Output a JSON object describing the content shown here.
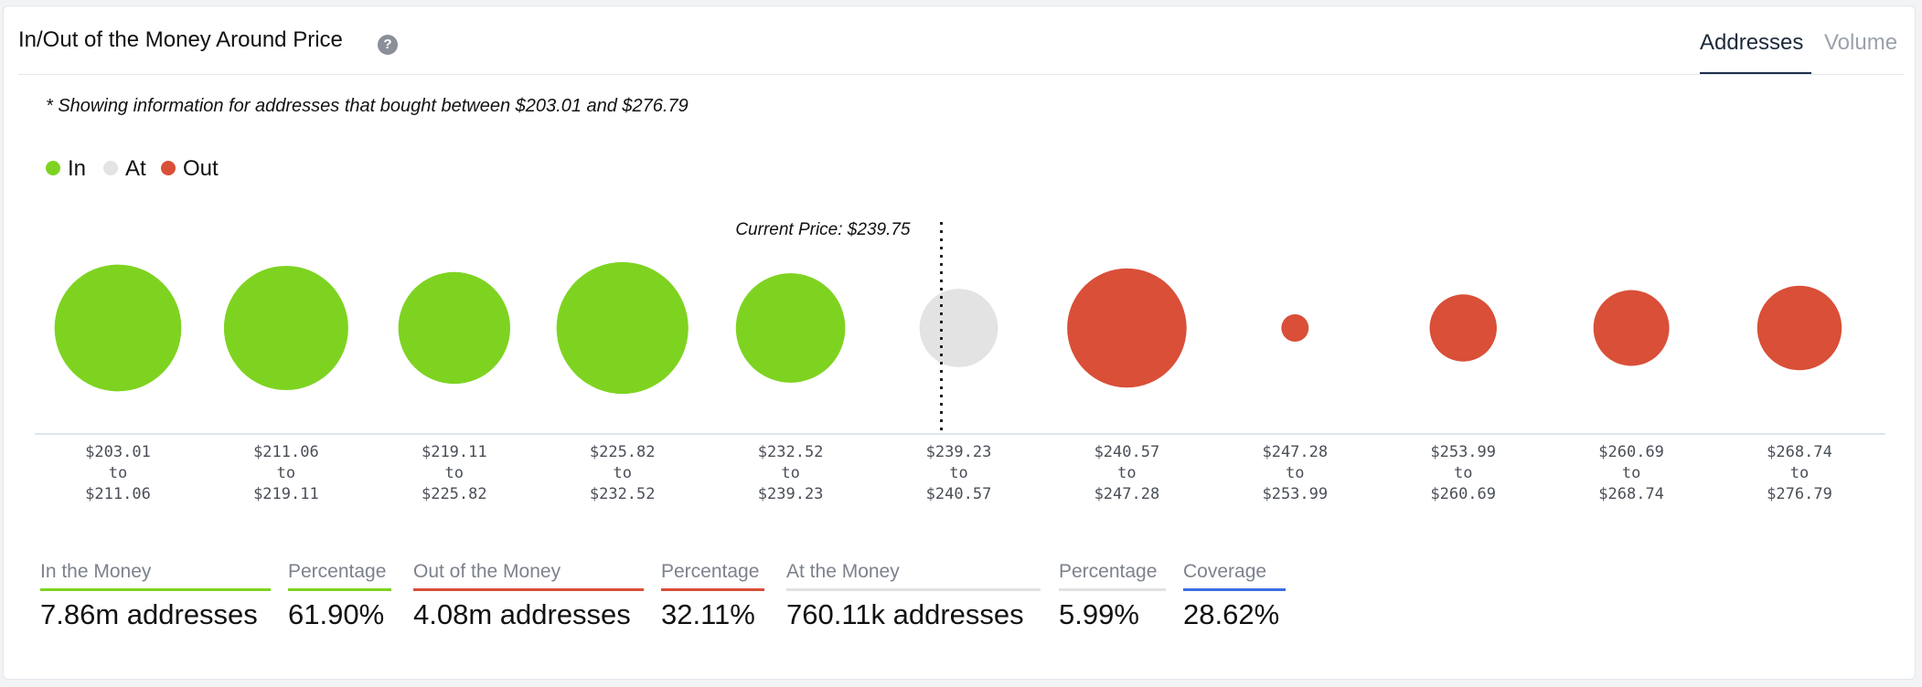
{
  "header": {
    "title": "In/Out of the Money Around Price",
    "help_icon": "question-circle-icon",
    "tabs": [
      {
        "label": "Addresses",
        "active": true
      },
      {
        "label": "Volume",
        "active": false
      }
    ]
  },
  "note": "* Showing information for addresses that bought between $203.01 and $276.79",
  "legend": [
    {
      "label": "In",
      "color": "#7ed321"
    },
    {
      "label": "At",
      "color": "#e3e3e3"
    },
    {
      "label": "Out",
      "color": "#d94f38"
    }
  ],
  "chart_data": {
    "type": "scatter",
    "subtype": "bubble",
    "current_price_label": "Current Price: $239.75",
    "current_price": 239.75,
    "colors": {
      "in": "#7ed321",
      "at": "#e3e3e3",
      "out": "#d94f38"
    },
    "buckets": [
      {
        "from": "$203.01",
        "to_word": "to",
        "to": "$211.06",
        "status": "in",
        "size": 1.02
      },
      {
        "from": "$211.06",
        "to_word": "to",
        "to": "$219.11",
        "status": "in",
        "size": 1.0
      },
      {
        "from": "$219.11",
        "to_word": "to",
        "to": "$225.82",
        "status": "in",
        "size": 0.9
      },
      {
        "from": "$225.82",
        "to_word": "to",
        "to": "$232.52",
        "status": "in",
        "size": 1.06
      },
      {
        "from": "$232.52",
        "to_word": "to",
        "to": "$239.23",
        "status": "in",
        "size": 0.88
      },
      {
        "from": "$239.23",
        "to_word": "to",
        "to": "$240.57",
        "status": "at",
        "size": 0.63
      },
      {
        "from": "$240.57",
        "to_word": "to",
        "to": "$247.28",
        "status": "out",
        "size": 0.96
      },
      {
        "from": "$247.28",
        "to_word": "to",
        "to": "$253.99",
        "status": "out",
        "size": 0.22
      },
      {
        "from": "$253.99",
        "to_word": "to",
        "to": "$260.69",
        "status": "out",
        "size": 0.54
      },
      {
        "from": "$260.69",
        "to_word": "to",
        "to": "$268.74",
        "status": "out",
        "size": 0.61
      },
      {
        "from": "$268.74",
        "to_word": "to",
        "to": "$276.79",
        "status": "out",
        "size": 0.68
      }
    ]
  },
  "metrics": [
    {
      "label": "In the Money",
      "value": "7.86m addresses",
      "color": "#7ed321"
    },
    {
      "label": "Percentage",
      "value": "61.90%",
      "color": "#7ed321"
    },
    {
      "label": "Out of the Money",
      "value": "4.08m addresses",
      "color": "#d94f38"
    },
    {
      "label": "Percentage",
      "value": "32.11%",
      "color": "#d94f38"
    },
    {
      "label": "At the Money",
      "value": "760.11k addresses",
      "color": "#e0e1e3"
    },
    {
      "label": "Percentage",
      "value": "5.99%",
      "color": "#e0e1e3"
    },
    {
      "label": "Coverage",
      "value": "28.62%",
      "color": "#3b6fe0"
    }
  ]
}
